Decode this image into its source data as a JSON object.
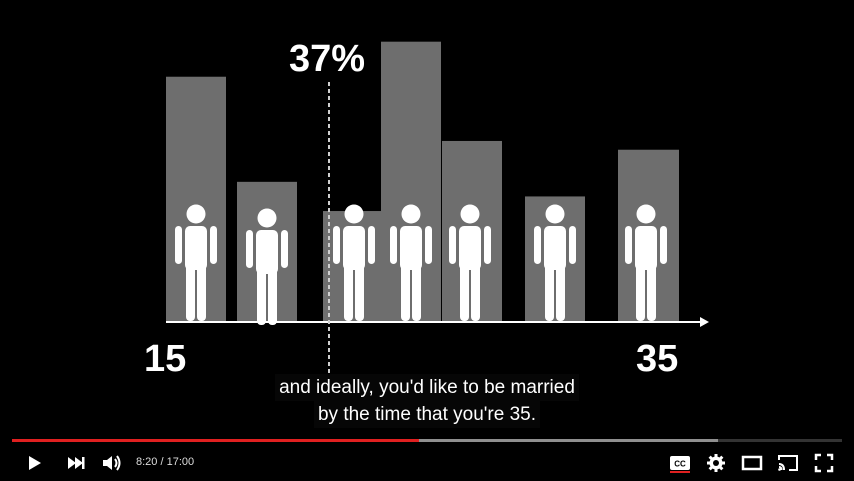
{
  "player": {
    "current_time": "8:20",
    "duration": "17:00",
    "time_display": "8:20 / 17:00",
    "played_fraction": 0.49,
    "buffered_fraction": 0.85,
    "accent": "#e02020"
  },
  "controls": {
    "left_icons": [
      "play-icon",
      "next-icon",
      "volume-icon"
    ],
    "right_icons": [
      "subtitles-icon",
      "settings-icon",
      "theater-mode-icon",
      "cast-icon",
      "fullscreen-icon"
    ],
    "cc_label": "CC"
  },
  "captions": {
    "line1": "and ideally, you'd like to be married",
    "line2": "by the time that you're 35."
  },
  "chart_data": {
    "type": "bar",
    "x": {
      "start_label": "15",
      "end_label": "35",
      "range": [
        15,
        35
      ]
    },
    "marker": {
      "label": "37%",
      "position": "dashed vertical line at 37% of range"
    },
    "values": [
      84,
      48,
      38,
      96,
      62,
      43,
      59
    ],
    "ylim": [
      0,
      100
    ],
    "grid": false,
    "bar_color": "#6e6e6e",
    "person_icons": 7,
    "title": "",
    "xlabel": "",
    "ylabel": ""
  }
}
